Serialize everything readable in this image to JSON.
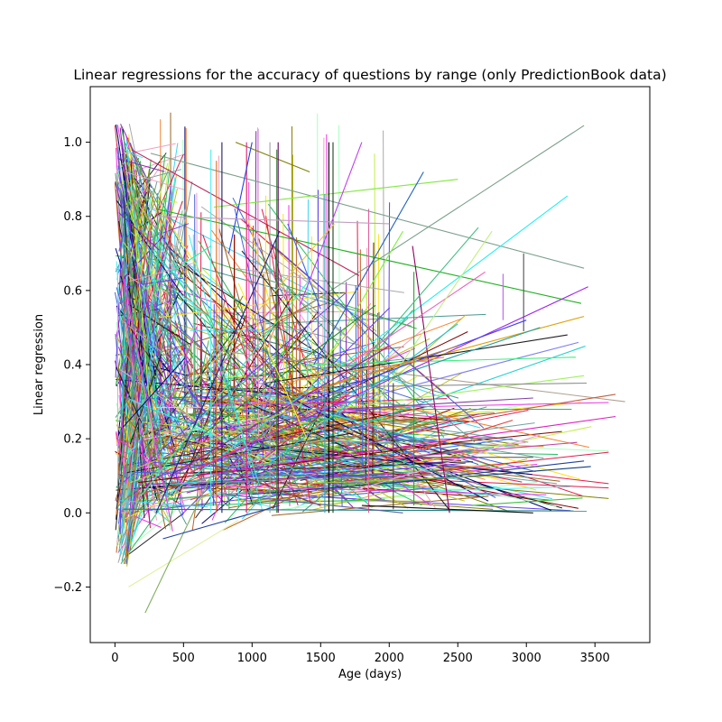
{
  "chart_data": {
    "type": "line",
    "title": "Linear regressions for the accuracy of questions by range (only PredictionBook data)",
    "xlabel": "Age (days)",
    "ylabel": "Linear regression",
    "xlim": [
      -180,
      3900
    ],
    "ylim": [
      -0.35,
      1.15
    ],
    "x_ticks": [
      0,
      500,
      1000,
      1500,
      2000,
      2500,
      3000,
      3500
    ],
    "x_tick_labels": [
      "0",
      "500",
      "1000",
      "1500",
      "2000",
      "2500",
      "3000",
      "3500"
    ],
    "y_ticks": [
      -0.2,
      0.0,
      0.2,
      0.4,
      0.6,
      0.8,
      1.0
    ],
    "y_tick_labels": [
      "−0.2",
      "0.0",
      "0.2",
      "0.4",
      "0.6",
      "0.8",
      "1.0"
    ],
    "grid": false,
    "legend": "none",
    "series_count_approx": 2000,
    "series": [
      {
        "x": [
          880,
          1420
        ],
        "y": [
          1.0,
          0.92
        ],
        "color": "#808000"
      },
      {
        "x": [
          260,
          3420
        ],
        "y": [
          0.97,
          0.66
        ],
        "color": "#7ca08c"
      },
      {
        "x": [
          330,
          3420
        ],
        "y": [
          0.3,
          1.045
        ],
        "color": "#7ca08c"
      },
      {
        "x": [
          720,
          2500
        ],
        "y": [
          0.825,
          0.9
        ],
        "color": "#80e840"
      },
      {
        "x": [
          300,
          3400
        ],
        "y": [
          0.82,
          0.565
        ],
        "color": "#20b020"
      },
      {
        "x": [
          120,
          1780
        ],
        "y": [
          0.98,
          0.64
        ],
        "color": "#c0205a"
      },
      {
        "x": [
          400,
          3300
        ],
        "y": [
          0.05,
          0.855
        ],
        "color": "#20f0f0"
      },
      {
        "x": [
          500,
          3450
        ],
        "y": [
          0.1,
          0.61
        ],
        "color": "#a020f0"
      },
      {
        "x": [
          900,
          3420
        ],
        "y": [
          0.28,
          0.53
        ],
        "color": "#e0a000"
      },
      {
        "x": [
          600,
          3650
        ],
        "y": [
          0.1,
          0.26
        ],
        "color": "#e020c0"
      },
      {
        "x": [
          700,
          3720
        ],
        "y": [
          0.44,
          0.3
        ],
        "color": "#b0a090"
      },
      {
        "x": [
          1000,
          3470
        ],
        "y": [
          0.05,
          0.125
        ],
        "color": "#104080"
      },
      {
        "x": [
          800,
          3650
        ],
        "y": [
          0.15,
          0.32
        ],
        "color": "#c06040"
      },
      {
        "x": [
          60,
          3440
        ],
        "y": [
          0.01,
          0.005
        ],
        "color": "#208080"
      },
      {
        "x": [
          1200,
          3380
        ],
        "y": [
          0.25,
          0.46
        ],
        "color": "#8080f0"
      },
      {
        "x": [
          1500,
          3430
        ],
        "y": [
          0.2,
          0.45
        ],
        "color": "#20d0d0"
      },
      {
        "x": [
          1600,
          3420
        ],
        "y": [
          0.28,
          0.37
        ],
        "color": "#a0f060"
      },
      {
        "x": [
          1100,
          3300
        ],
        "y": [
          0.35,
          0.48
        ],
        "color": "#202020"
      },
      {
        "x": [
          2000,
          3420
        ],
        "y": [
          0.08,
          0.14
        ],
        "color": "#2040a0"
      },
      {
        "x": [
          1400,
          3360
        ],
        "y": [
          0.4,
          0.42
        ],
        "color": "#40f080"
      },
      {
        "x": [
          1700,
          3440
        ],
        "y": [
          0.34,
          0.35
        ],
        "color": "#909090"
      },
      {
        "x": [
          2100,
          3370
        ],
        "y": [
          0.15,
          0.19
        ],
        "color": "#c040a0"
      },
      {
        "x": [
          2300,
          3320
        ],
        "y": [
          0.06,
          0.07
        ],
        "color": "#60f0f0"
      },
      {
        "x": [
          2600,
          3410
        ],
        "y": [
          0.02,
          0.04
        ],
        "color": "#40c040"
      },
      {
        "x": [
          2980,
          2980
        ],
        "y": [
          0.49,
          0.7
        ],
        "color": "#505050"
      },
      {
        "x": [
          2830,
          2830
        ],
        "y": [
          0.52,
          0.645
        ],
        "color": "#c060f0"
      },
      {
        "x": [
          2170,
          2440
        ],
        "y": [
          0.72,
          0.0
        ],
        "color": "#900060"
      },
      {
        "x": [
          2030,
          2030
        ],
        "y": [
          0.01,
          0.35
        ],
        "color": "#404040"
      },
      {
        "x": [
          2180,
          2180
        ],
        "y": [
          0.02,
          0.65
        ],
        "color": "#30a030"
      },
      {
        "x": [
          1560,
          1560
        ],
        "y": [
          0.0,
          1.0
        ],
        "color": "#000000"
      },
      {
        "x": [
          1590,
          1590
        ],
        "y": [
          0.0,
          1.0
        ],
        "color": "#204020"
      },
      {
        "x": [
          1530,
          1530
        ],
        "y": [
          0.0,
          0.86
        ],
        "color": "#40a0c0"
      },
      {
        "x": [
          1190,
          1190
        ],
        "y": [
          0.0,
          1.0
        ],
        "color": "#600060"
      },
      {
        "x": [
          1130,
          1130
        ],
        "y": [
          0.0,
          1.0
        ],
        "color": "#a0a0a0"
      },
      {
        "x": [
          780,
          780
        ],
        "y": [
          0.0,
          1.0
        ],
        "color": "#202060"
      },
      {
        "x": [
          740,
          740
        ],
        "y": [
          0.0,
          0.95
        ],
        "color": "#e07020"
      },
      {
        "x": [
          700,
          700
        ],
        "y": [
          0.0,
          0.98
        ],
        "color": "#40f0f0"
      },
      {
        "x": [
          960,
          960
        ],
        "y": [
          0.0,
          1.0
        ],
        "color": "#e02080"
      },
      {
        "x": [
          1850,
          1850
        ],
        "y": [
          0.0,
          0.82
        ],
        "color": "#e060a0"
      },
      {
        "x": [
          1180,
          1180
        ],
        "y": [
          0.0,
          0.98
        ],
        "color": "#408040"
      },
      {
        "x": [
          830,
          1000
        ],
        "y": [
          0.7,
          1.0
        ],
        "color": "#2040f0"
      },
      {
        "x": [
          1260,
          1500
        ],
        "y": [
          0.78,
          0.55
        ],
        "color": "#4060f0"
      },
      {
        "x": [
          1350,
          1800
        ],
        "y": [
          0.56,
          1.0
        ],
        "color": "#c040f0"
      },
      {
        "x": [
          1300,
          2100
        ],
        "y": [
          0.26,
          0.76
        ],
        "color": "#80f040"
      },
      {
        "x": [
          1450,
          2250
        ],
        "y": [
          0.4,
          0.92
        ],
        "color": "#2060c0"
      },
      {
        "x": [
          1700,
          2700
        ],
        "y": [
          0.4,
          0.65
        ],
        "color": "#f060c0"
      },
      {
        "x": [
          1600,
          2650
        ],
        "y": [
          0.32,
          0.77
        ],
        "color": "#40c080"
      },
      {
        "x": [
          1900,
          2750
        ],
        "y": [
          0.3,
          0.76
        ],
        "color": "#c0f080"
      },
      {
        "x": [
          1000,
          2500
        ],
        "y": [
          0.1,
          0.51
        ],
        "color": "#20c0e0"
      },
      {
        "x": [
          1400,
          3000
        ],
        "y": [
          0.3,
          0.52
        ],
        "color": "#4040f0"
      },
      {
        "x": [
          1200,
          2500
        ],
        "y": [
          0.3,
          0.45
        ],
        "color": "#c08040"
      },
      {
        "x": [
          1500,
          3100
        ],
        "y": [
          0.3,
          0.5
        ],
        "color": "#20a0a0"
      },
      {
        "x": [
          1600,
          2900
        ],
        "y": [
          0.1,
          0.25
        ],
        "color": "#e04040"
      },
      {
        "x": [
          1700,
          3050
        ],
        "y": [
          0.28,
          0.31
        ],
        "color": "#8040a0"
      },
      {
        "x": [
          1650,
          3100
        ],
        "y": [
          0.05,
          0.21
        ],
        "color": "#f0a0f0"
      },
      {
        "x": [
          2200,
          3050
        ],
        "y": [
          0.15,
          0.15
        ],
        "color": "#606060"
      },
      {
        "x": [
          1800,
          3050
        ],
        "y": [
          0.02,
          0.0
        ],
        "color": "#101010"
      },
      {
        "x": [
          1450,
          2800
        ],
        "y": [
          0.08,
          0.1
        ],
        "color": "#a0c040"
      },
      {
        "x": [
          1250,
          2900
        ],
        "y": [
          0.12,
          0.2
        ],
        "color": "#4080f0"
      },
      {
        "x": [
          1350,
          2400
        ],
        "y": [
          0.36,
          0.42
        ],
        "color": "#f08040"
      },
      {
        "x": [
          400,
          2000
        ],
        "y": [
          0.1,
          0.45
        ],
        "color": "#9020a0"
      },
      {
        "x": [
          600,
          1900
        ],
        "y": [
          0.2,
          0.56
        ],
        "color": "#209020"
      },
      {
        "x": [
          300,
          1200
        ],
        "y": [
          0.0,
          0.76
        ],
        "color": "#202080"
      },
      {
        "x": [
          700,
          1600
        ],
        "y": [
          0.4,
          0.78
        ],
        "color": "#f0c040"
      },
      {
        "x": [
          200,
          1400
        ],
        "y": [
          0.05,
          0.62
        ],
        "color": "#40f0a0"
      },
      {
        "x": [
          500,
          1700
        ],
        "y": [
          0.1,
          0.32
        ],
        "color": "#f04060"
      },
      {
        "x": [
          350,
          1500
        ],
        "y": [
          0.18,
          0.02
        ],
        "color": "#a04040"
      },
      {
        "x": [
          800,
          2100
        ],
        "y": [
          0.05,
          0.0
        ],
        "color": "#6060a0"
      },
      {
        "x": [
          100,
          900
        ],
        "y": [
          -0.2,
          -0.02
        ],
        "color": "#e0f0a0"
      },
      {
        "x": [
          220,
          700
        ],
        "y": [
          -0.27,
          0.1
        ],
        "color": "#80b060"
      },
      {
        "x": [
          350,
          1200
        ],
        "y": [
          -0.07,
          0.02
        ],
        "color": "#2040a0"
      },
      {
        "x": [
          150,
          1300
        ],
        "y": [
          0.12,
          0.28
        ],
        "color": "#c0c040"
      },
      {
        "x": [
          450,
          1100
        ],
        "y": [
          0.72,
          0.2
        ],
        "color": "#60c060"
      },
      {
        "x": [
          900,
          1400
        ],
        "y": [
          0.62,
          0.2
        ],
        "color": "#f0f020"
      },
      {
        "x": [
          1050,
          1300
        ],
        "y": [
          0.74,
          0.35
        ],
        "color": "#a06020"
      },
      {
        "x": [
          650,
          1050
        ],
        "y": [
          0.52,
          0.08
        ],
        "color": "#40e0c0"
      },
      {
        "x": [
          300,
          2000
        ],
        "y": [
          0.8,
          0.78
        ],
        "color": "#c0a0c0"
      },
      {
        "x": [
          200,
          700
        ],
        "y": [
          0.6,
          0.72
        ],
        "color": "#20f0a0"
      }
    ],
    "cluster_note": "dense cluster of short segments near x=0-600 spanning y=-0.28 to 1.10"
  }
}
